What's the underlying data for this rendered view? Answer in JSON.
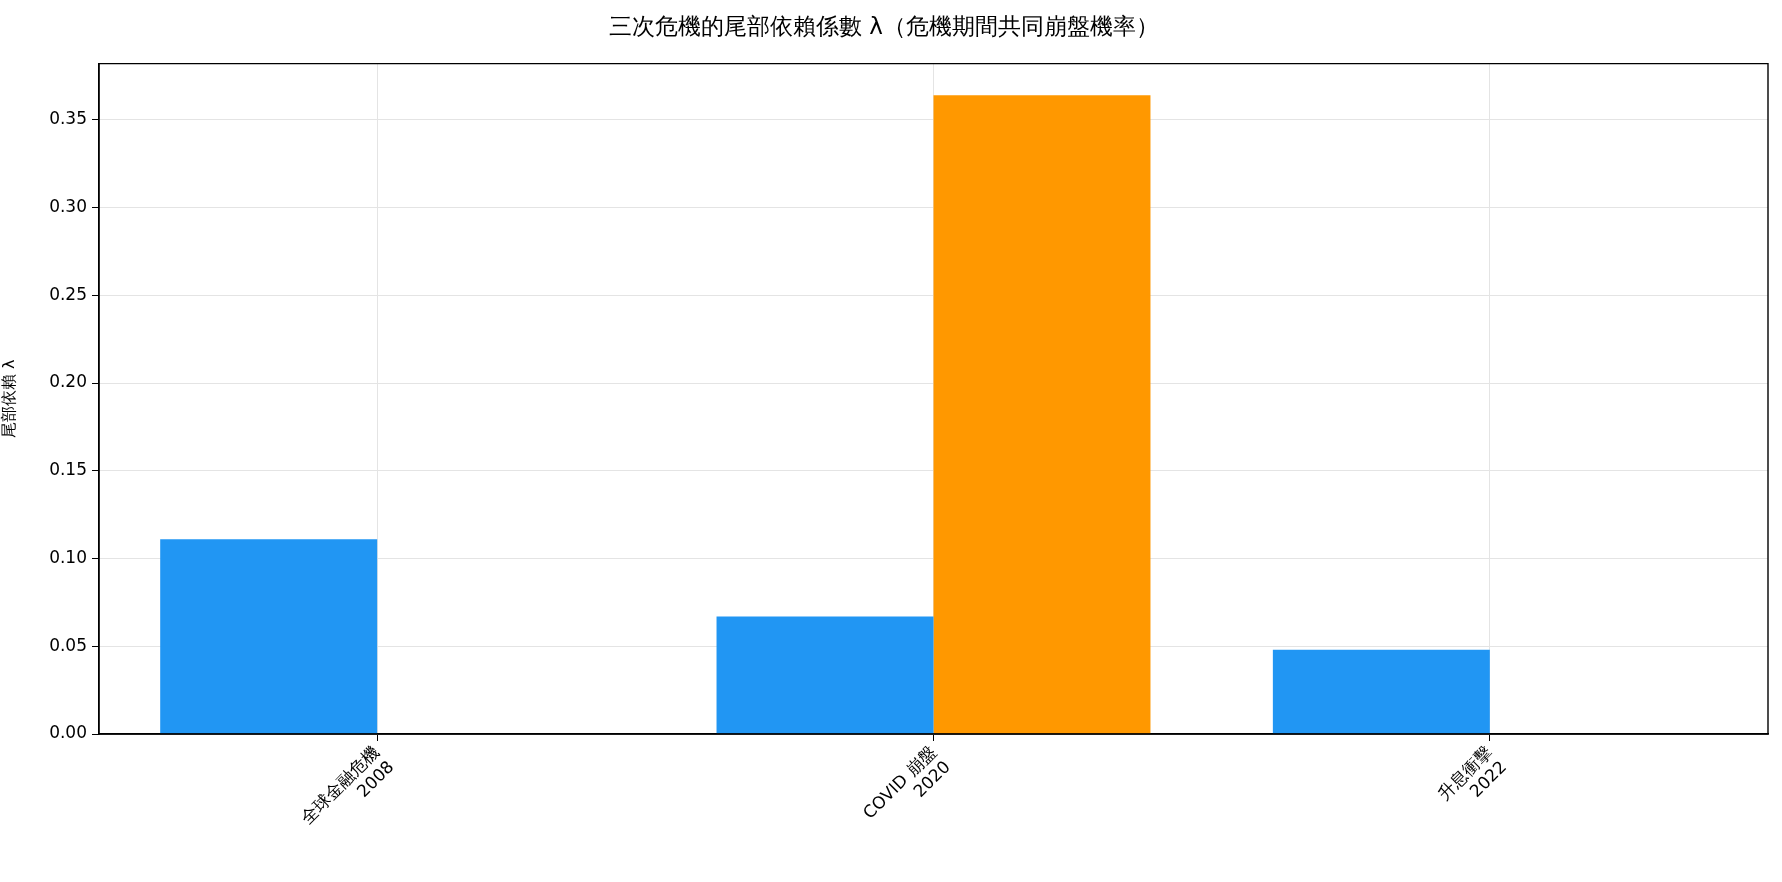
{
  "chart_data": {
    "type": "bar",
    "title": "三次危機的尾部依賴係數 λ（危機期間共同崩盤機率）",
    "ylabel": "尾部依賴 λ",
    "categories": [
      "全球金融危機\n2008",
      "COVID 崩盤\n2020",
      "升息衝擊\n2022"
    ],
    "series": [
      {
        "color": "#2196f3",
        "values": [
          0.111,
          0.067,
          0.048
        ]
      },
      {
        "color": "#ff9800",
        "values": [
          null,
          0.364,
          null
        ]
      }
    ],
    "ylim": [
      0,
      0.382
    ],
    "yticks": [
      {
        "value": 0,
        "label": "0.00"
      },
      0.05,
      {
        "value": 0.1,
        "label": "0.10"
      },
      0.15,
      {
        "value": 0.2,
        "label": "0.20"
      },
      0.25,
      {
        "value": 0.3,
        "label": "0.30"
      },
      0.35
    ],
    "grid": true,
    "legend": false
  }
}
